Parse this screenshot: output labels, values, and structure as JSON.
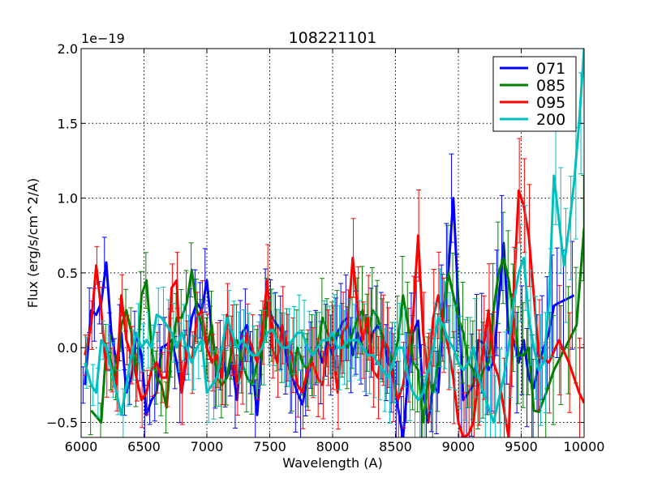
{
  "chart_data": {
    "type": "line",
    "title": "108221101",
    "xlabel": "Wavelength (A)",
    "ylabel": "Flux (erg/s/cm^2/A)",
    "y_offset_label": "1e−19",
    "xlim": [
      6000,
      10000
    ],
    "ylim": [
      -0.6,
      2.0
    ],
    "grid": true,
    "legend_position": "top-right",
    "x_ticks": [
      6000,
      6500,
      7000,
      7500,
      8000,
      8500,
      9000,
      9500,
      10000
    ],
    "x_tick_labels": [
      "6000",
      "6500",
      "7000",
      "7500",
      "8000",
      "8500",
      "9000",
      "9500",
      "10000"
    ],
    "y_ticks": [
      -0.5,
      0.0,
      0.5,
      1.0,
      1.5,
      2.0
    ],
    "y_tick_labels": [
      "−0.5",
      "0.0",
      "0.5",
      "1.0",
      "1.5",
      "2.0"
    ],
    "series": [
      {
        "name": "071",
        "color": "#0000ff",
        "x": [
          6030,
          6080,
          6120,
          6160,
          6200,
          6240,
          6280,
          6320,
          6360,
          6400,
          6440,
          6480,
          6520,
          6560,
          6600,
          6640,
          6680,
          6720,
          6760,
          6800,
          6840,
          6880,
          6920,
          6960,
          7000,
          7040,
          7080,
          7120,
          7160,
          7200,
          7240,
          7280,
          7320,
          7360,
          7400,
          7440,
          7480,
          7520,
          7560,
          7600,
          7640,
          7680,
          7720,
          7760,
          7800,
          7840,
          7880,
          7920,
          7960,
          8000,
          8040,
          8080,
          8120,
          8160,
          8200,
          8240,
          8280,
          8320,
          8360,
          8400,
          8440,
          8480,
          8520,
          8560,
          8600,
          8640,
          8680,
          8720,
          8760,
          8800,
          8840,
          8880,
          8920,
          8960,
          9000,
          9040,
          9080,
          9120,
          9160,
          9200,
          9240,
          9280,
          9320,
          9360,
          9400,
          9440,
          9480,
          9520,
          9560,
          9600,
          9640,
          9680,
          9720,
          9760,
          9800,
          9850,
          9920
        ],
        "y": [
          -0.25,
          0.25,
          0.22,
          0.3,
          0.57,
          0.1,
          -0.1,
          0.1,
          -0.3,
          -0.2,
          0.1,
          -0.05,
          -0.45,
          -0.35,
          -0.3,
          0.0,
          0.02,
          0.05,
          -0.1,
          -0.3,
          -0.05,
          0.2,
          0.3,
          0.25,
          0.45,
          0.1,
          -0.2,
          -0.05,
          -0.2,
          -0.1,
          -0.35,
          0.1,
          0.15,
          -0.1,
          -0.45,
          0.02,
          0.3,
          0.2,
          0.15,
          0.1,
          -0.1,
          -0.2,
          -0.3,
          -0.38,
          -0.2,
          -0.05,
          0.0,
          -0.1,
          0.05,
          -0.05,
          0.1,
          0.17,
          0.2,
          -0.05,
          0.1,
          0.0,
          -0.05,
          0.1,
          0.15,
          0.08,
          -0.1,
          -0.15,
          -0.4,
          -0.6,
          -0.2,
          0.1,
          0.18,
          -0.3,
          -0.5,
          -0.25,
          -0.3,
          0.25,
          0.5,
          1.0,
          0.3,
          -0.35,
          -0.3,
          -0.25,
          0.05,
          0.03,
          -0.15,
          -0.1,
          0.3,
          0.7,
          0.1,
          0.05,
          -0.1,
          0.05,
          -0.2,
          -0.27,
          -0.1,
          0.0,
          0.1,
          0.28,
          0.3,
          0.32,
          0.35
        ]
      },
      {
        "name": "085",
        "color": "#008000",
        "x": [
          6080,
          6160,
          6200,
          6240,
          6280,
          6320,
          6360,
          6400,
          6440,
          6480,
          6520,
          6560,
          6600,
          6640,
          6680,
          6720,
          6760,
          6800,
          6840,
          6880,
          6920,
          6960,
          7000,
          7040,
          7080,
          7120,
          7160,
          7200,
          7240,
          7280,
          7320,
          7360,
          7400,
          7440,
          7480,
          7520,
          7560,
          7600,
          7640,
          7680,
          7720,
          7760,
          7800,
          7840,
          7880,
          7920,
          7960,
          8000,
          8040,
          8080,
          8120,
          8160,
          8200,
          8240,
          8280,
          8320,
          8360,
          8400,
          8440,
          8480,
          8520,
          8560,
          8600,
          8640,
          8680,
          8720,
          8760,
          8800,
          8840,
          8880,
          8920,
          8960,
          9000,
          9040,
          9080,
          9120,
          9160,
          9200,
          9240,
          9280,
          9320,
          9360,
          9400,
          9440,
          9480,
          9520,
          9560,
          9600,
          9640,
          9700,
          9760,
          9820,
          9880,
          9940,
          10000
        ],
        "y": [
          -0.42,
          -0.5,
          0.0,
          -0.1,
          -0.2,
          0.15,
          0.25,
          0.1,
          -0.2,
          0.35,
          0.45,
          0.0,
          -0.2,
          -0.25,
          -0.4,
          0.0,
          0.2,
          0.2,
          0.3,
          0.52,
          0.25,
          0.15,
          0.0,
          0.15,
          -0.2,
          -0.25,
          -0.2,
          0.0,
          0.05,
          -0.1,
          -0.2,
          -0.25,
          -0.1,
          0.0,
          0.25,
          0.15,
          0.05,
          0.0,
          0.0,
          -0.2,
          0.0,
          -0.1,
          -0.15,
          -0.05,
          0.0,
          0.2,
          0.1,
          0.05,
          0.1,
          0.05,
          0.0,
          0.1,
          0.2,
          0.25,
          0.1,
          0.25,
          0.2,
          0.05,
          0.0,
          -0.1,
          0.05,
          0.35,
          0.15,
          -0.1,
          -0.15,
          -0.5,
          -0.2,
          -0.3,
          -0.1,
          0.2,
          0.5,
          0.35,
          0.2,
          0.1,
          -0.1,
          -0.15,
          -0.25,
          -0.15,
          -0.1,
          0.25,
          0.5,
          0.6,
          0.45,
          0.2,
          -0.05,
          -0.05,
          0.0,
          -0.42,
          -0.43,
          -0.3,
          -0.15,
          -0.05,
          0.05,
          0.15,
          0.8
        ]
      },
      {
        "name": "095",
        "color": "#ff0000",
        "x": [
          6030,
          6080,
          6120,
          6160,
          6200,
          6240,
          6280,
          6320,
          6360,
          6400,
          6440,
          6480,
          6520,
          6560,
          6600,
          6640,
          6680,
          6720,
          6760,
          6800,
          6840,
          6880,
          6920,
          6960,
          7000,
          7040,
          7080,
          7120,
          7160,
          7200,
          7240,
          7280,
          7320,
          7360,
          7400,
          7440,
          7480,
          7520,
          7560,
          7600,
          7640,
          7680,
          7720,
          7760,
          7800,
          7840,
          7880,
          7920,
          7960,
          8000,
          8040,
          8080,
          8120,
          8160,
          8200,
          8240,
          8280,
          8320,
          8360,
          8400,
          8440,
          8480,
          8520,
          8560,
          8600,
          8640,
          8680,
          8720,
          8760,
          8800,
          8840,
          8880,
          8920,
          8960,
          9000,
          9040,
          9080,
          9120,
          9160,
          9200,
          9240,
          9280,
          9320,
          9360,
          9400,
          9440,
          9480,
          9520,
          9560,
          9640,
          9720,
          9800,
          9880,
          9960,
          10000
        ],
        "y": [
          -0.05,
          0.15,
          0.55,
          0.25,
          -0.15,
          -0.15,
          -0.25,
          0.35,
          0.05,
          -0.05,
          -0.2,
          -0.35,
          -0.3,
          -0.15,
          -0.1,
          -0.2,
          -0.2,
          0.4,
          0.45,
          -0.3,
          0.0,
          -0.1,
          0.2,
          0.25,
          0.0,
          -0.1,
          -0.05,
          -0.2,
          0.22,
          0.05,
          -0.25,
          -0.15,
          0.1,
          0.0,
          -0.1,
          0.1,
          0.45,
          0.0,
          -0.1,
          0.15,
          0.0,
          -0.05,
          -0.25,
          -0.3,
          -0.15,
          -0.1,
          -0.2,
          -0.25,
          0.0,
          0.0,
          -0.3,
          0.1,
          0.15,
          0.6,
          0.25,
          0.05,
          0.2,
          -0.15,
          -0.2,
          0.05,
          0.0,
          -0.2,
          -0.35,
          -0.25,
          -0.05,
          0.2,
          0.75,
          0.1,
          -0.2,
          0.2,
          0.35,
          0.15,
          0.0,
          -0.2,
          -0.5,
          -0.6,
          -0.58,
          -0.5,
          -0.2,
          0.0,
          0.25,
          -0.1,
          -0.2,
          -0.4,
          -0.6,
          0.35,
          1.05,
          0.95,
          0.75,
          -0.05,
          -0.1,
          0.05,
          -0.1,
          -0.3,
          -0.37
        ]
      },
      {
        "name": "200",
        "color": "#00bfbf",
        "x": [
          6030,
          6080,
          6120,
          6160,
          6200,
          6240,
          6280,
          6320,
          6360,
          6400,
          6440,
          6480,
          6520,
          6560,
          6600,
          6640,
          6680,
          6720,
          6760,
          6800,
          6840,
          6880,
          6920,
          6960,
          7000,
          7040,
          7080,
          7120,
          7160,
          7200,
          7240,
          7280,
          7320,
          7360,
          7400,
          7440,
          7480,
          7520,
          7560,
          7600,
          7640,
          7680,
          7720,
          7760,
          7800,
          7840,
          7880,
          7920,
          7960,
          8000,
          8040,
          8080,
          8120,
          8160,
          8200,
          8240,
          8280,
          8320,
          8360,
          8400,
          8440,
          8480,
          8520,
          8560,
          8600,
          8640,
          8680,
          8720,
          8760,
          8800,
          8840,
          8880,
          8920,
          8960,
          9000,
          9040,
          9080,
          9120,
          9160,
          9200,
          9240,
          9280,
          9320,
          9360,
          9400,
          9440,
          9480,
          9520,
          9560,
          9600,
          9640,
          9680,
          9720,
          9760,
          9800,
          9840,
          9880,
          9920,
          9960,
          10000
        ],
        "y": [
          -0.1,
          -0.25,
          -0.3,
          0.05,
          0.0,
          -0.15,
          -0.3,
          -0.45,
          -0.25,
          -0.05,
          0.1,
          0.0,
          0.05,
          0.0,
          0.22,
          0.2,
          0.15,
          0.1,
          0.0,
          0.1,
          0.0,
          -0.1,
          0.0,
          0.05,
          -0.3,
          -0.25,
          -0.2,
          0.0,
          0.2,
          0.1,
          0.0,
          0.05,
          0.0,
          -0.05,
          -0.05,
          0.0,
          0.1,
          0.12,
          0.05,
          0.0,
          0.0,
          0.05,
          0.1,
          0.1,
          0.0,
          -0.05,
          0.0,
          0.05,
          0.05,
          0.1,
          0.0,
          0.0,
          0.05,
          0.05,
          0.05,
          0.0,
          -0.05,
          -0.05,
          -0.1,
          -0.15,
          -0.2,
          -0.1,
          0.0,
          0.0,
          -0.2,
          -0.3,
          -0.35,
          -0.3,
          -0.15,
          0.0,
          0.2,
          0.15,
          0.05,
          0.0,
          -0.1,
          -0.15,
          -0.1,
          0.0,
          -0.2,
          -0.3,
          -0.4,
          -0.5,
          -0.35,
          -0.2,
          0.0,
          0.3,
          0.5,
          0.6,
          0.2,
          0.0,
          -0.15,
          -0.1,
          0.3,
          1.15,
          0.85,
          0.55,
          0.8,
          1.1,
          1.5,
          2.0
        ]
      }
    ]
  }
}
